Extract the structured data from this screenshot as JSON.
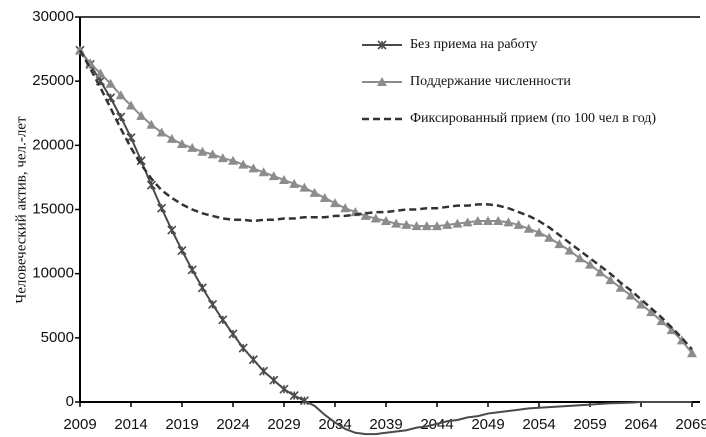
{
  "chart_data": {
    "type": "line",
    "ylabel": "Человеческий актив, чел.-лет",
    "x": [
      2009,
      2010,
      2011,
      2012,
      2013,
      2014,
      2015,
      2016,
      2017,
      2018,
      2019,
      2020,
      2021,
      2022,
      2023,
      2024,
      2025,
      2026,
      2027,
      2028,
      2029,
      2030,
      2031,
      2032,
      2033,
      2034,
      2035,
      2036,
      2037,
      2038,
      2039,
      2040,
      2041,
      2042,
      2043,
      2044,
      2045,
      2046,
      2047,
      2048,
      2049,
      2050,
      2051,
      2052,
      2053,
      2054,
      2055,
      2056,
      2057,
      2058,
      2059,
      2060,
      2061,
      2062,
      2063,
      2064,
      2065,
      2066,
      2067,
      2068,
      2069
    ],
    "xlim": [
      2009,
      2069
    ],
    "xticks": [
      2009,
      2014,
      2019,
      2024,
      2029,
      2034,
      2039,
      2044,
      2049,
      2054,
      2059,
      2064,
      2069
    ],
    "ylim": [
      0,
      30000
    ],
    "yticks": [
      0,
      5000,
      10000,
      15000,
      20000,
      25000,
      30000
    ],
    "legend": "upper right",
    "series": [
      {
        "name": "Без приема на работу",
        "color": "#4a4a4a",
        "marker": "x",
        "dash": false,
        "values": [
          27400,
          26300,
          25000,
          23700,
          22200,
          20600,
          18800,
          16900,
          15100,
          13400,
          11800,
          10300,
          8900,
          7600,
          6400,
          5300,
          4200,
          3300,
          2400,
          1700,
          1000,
          500,
          100,
          -300,
          -1000,
          -1600,
          -2100,
          -2400,
          -2500,
          -2500,
          -2400,
          -2300,
          -2200,
          -2000,
          -1900,
          -1700,
          -1500,
          -1400,
          -1200,
          -1100,
          -900,
          -800,
          -700,
          -600,
          -500,
          -450,
          -400,
          -350,
          -300,
          -250,
          -200,
          -150,
          -100,
          -80,
          -50,
          0,
          0,
          0,
          0,
          0,
          0
        ]
      },
      {
        "name": "Поддержание численности",
        "color": "#8c8c8c",
        "marker": "triangle",
        "dash": false,
        "values": [
          27400,
          26400,
          25600,
          24800,
          23900,
          23100,
          22300,
          21600,
          21000,
          20500,
          20100,
          19800,
          19500,
          19300,
          19000,
          18800,
          18500,
          18200,
          17900,
          17600,
          17300,
          17000,
          16700,
          16300,
          15900,
          15500,
          15100,
          14800,
          14500,
          14300,
          14100,
          13900,
          13800,
          13700,
          13700,
          13700,
          13800,
          13900,
          14000,
          14100,
          14100,
          14100,
          14000,
          13800,
          13500,
          13200,
          12800,
          12300,
          11800,
          11200,
          10700,
          10100,
          9500,
          8900,
          8300,
          7600,
          7000,
          6300,
          5600,
          4800,
          3800
        ]
      },
      {
        "name": "Фиксированный прием  (по 100 чел в год)",
        "color": "#333333",
        "marker": null,
        "dash": true,
        "values": [
          27400,
          26000,
          24500,
          22900,
          21300,
          19800,
          18500,
          17400,
          16500,
          15900,
          15400,
          15000,
          14700,
          14500,
          14300,
          14200,
          14200,
          14100,
          14200,
          14200,
          14300,
          14300,
          14400,
          14400,
          14400,
          14500,
          14500,
          14600,
          14700,
          14800,
          14800,
          14900,
          15000,
          15000,
          15100,
          15100,
          15200,
          15300,
          15300,
          15400,
          15400,
          15300,
          15100,
          14800,
          14500,
          14100,
          13600,
          13000,
          12400,
          11800,
          11200,
          10600,
          10000,
          9300,
          8700,
          8000,
          7300,
          6600,
          5800,
          5000,
          4100
        ]
      }
    ]
  }
}
